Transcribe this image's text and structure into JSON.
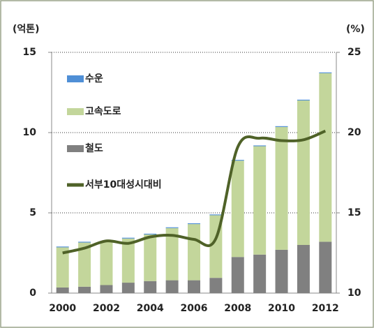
{
  "chart_data": {
    "type": "bar",
    "stacked": true,
    "y_label": "(억톤)",
    "y2_label": "(%)",
    "categories": [
      "2000",
      null,
      "2002",
      null,
      "2004",
      null,
      "2006",
      null,
      "2008",
      null,
      "2010",
      null,
      "2012"
    ],
    "series": [
      {
        "name": "수운",
        "color": "#4f8fd6",
        "type": "bar",
        "values": [
          0.05,
          0.05,
          0.05,
          0.05,
          0.05,
          0.05,
          0.05,
          0.05,
          0.05,
          0.05,
          0.05,
          0.05,
          0.05
        ]
      },
      {
        "name": "고속도로",
        "color": "#c3d69b",
        "type": "bar",
        "values": [
          2.5,
          2.75,
          2.7,
          2.75,
          2.9,
          3.25,
          3.5,
          3.9,
          6.0,
          6.75,
          7.65,
          9.0,
          10.5
        ]
      },
      {
        "name": "철도",
        "color": "#808080",
        "type": "bar",
        "values": [
          0.35,
          0.4,
          0.5,
          0.65,
          0.75,
          0.8,
          0.8,
          0.95,
          2.25,
          2.4,
          2.7,
          3.0,
          3.2
        ]
      },
      {
        "name": "서부10대성시대비",
        "color": "#4f6228",
        "type": "line",
        "axis": "y2",
        "values": [
          12.5,
          12.8,
          13.25,
          13.1,
          13.5,
          13.6,
          13.35,
          13.4,
          19.1,
          19.65,
          19.5,
          19.55,
          20.1
        ]
      }
    ],
    "stack_order": [
      "철도",
      "고속도로",
      "수운"
    ],
    "ylim": [
      0,
      15
    ],
    "yticks": [
      0,
      5,
      10,
      15
    ],
    "y2lim": [
      10,
      25
    ],
    "y2ticks": [
      10,
      15,
      20,
      25
    ],
    "grid": true,
    "legend": "upper left"
  }
}
